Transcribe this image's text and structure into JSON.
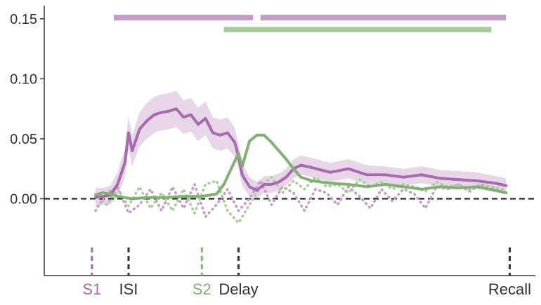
{
  "chart_data": {
    "type": "line",
    "title": "",
    "xlabel": "",
    "ylabel": "",
    "xlim": [
      -1.3,
      12.1
    ],
    "ylim": [
      -0.064,
      0.161
    ],
    "yticks": [
      0.0,
      0.05,
      0.1,
      0.15
    ],
    "ytick_labels": [
      "0.00",
      "0.05",
      "0.10",
      "0.15"
    ],
    "zero_line": {
      "y": 0,
      "style": "dashed",
      "color": "#111111"
    },
    "grid": false,
    "legend": "none",
    "events": [
      {
        "label": "S1",
        "x": 0.0,
        "color": "#a66aad"
      },
      {
        "label": "ISI",
        "x": 1.0,
        "color": "#333333"
      },
      {
        "label": "S2",
        "x": 3.0,
        "color": "#82b074"
      },
      {
        "label": "Delay",
        "x": 4.0,
        "color": "#333333"
      },
      {
        "label": "Recall",
        "x": 11.4,
        "color": "#333333"
      }
    ],
    "significance_bars": [
      {
        "color": "#c49ac8",
        "y": 0.151,
        "segments": [
          [
            0.6,
            4.4
          ],
          [
            4.6,
            11.3
          ]
        ]
      },
      {
        "color": "#a8cc9a",
        "y": 0.141,
        "segments": [
          [
            3.6,
            10.9
          ]
        ]
      }
    ],
    "series": [
      {
        "color": "#a66aad",
        "style": "solid",
        "x": [
          0.1,
          0.3,
          0.5,
          0.7,
          0.9,
          1.0,
          1.1,
          1.3,
          1.5,
          1.7,
          1.9,
          2.1,
          2.3,
          2.5,
          2.7,
          2.9,
          3.1,
          3.3,
          3.5,
          3.7,
          3.9,
          4.0,
          4.1,
          4.3,
          4.5,
          4.7,
          4.9,
          5.1,
          5.3,
          5.5,
          5.7,
          6.0,
          6.5,
          7.0,
          7.5,
          8.0,
          8.5,
          9.0,
          9.5,
          10.0,
          10.5,
          11.0,
          11.3
        ],
        "y": [
          0.001,
          0.002,
          0.003,
          0.012,
          0.03,
          0.055,
          0.04,
          0.058,
          0.065,
          0.07,
          0.072,
          0.073,
          0.075,
          0.068,
          0.07,
          0.062,
          0.067,
          0.055,
          0.053,
          0.055,
          0.047,
          0.035,
          0.02,
          0.01,
          0.007,
          0.012,
          0.012,
          0.014,
          0.018,
          0.025,
          0.028,
          0.026,
          0.022,
          0.025,
          0.02,
          0.02,
          0.018,
          0.02,
          0.017,
          0.016,
          0.015,
          0.013,
          0.011
        ],
        "band": [
          0.008,
          0.007,
          0.008,
          0.01,
          0.012,
          0.014,
          0.013,
          0.014,
          0.015,
          0.015,
          0.015,
          0.015,
          0.015,
          0.014,
          0.014,
          0.014,
          0.014,
          0.013,
          0.013,
          0.013,
          0.012,
          0.01,
          0.009,
          0.008,
          0.007,
          0.007,
          0.007,
          0.007,
          0.007,
          0.008,
          0.008,
          0.008,
          0.008,
          0.008,
          0.008,
          0.007,
          0.007,
          0.007,
          0.007,
          0.007,
          0.007,
          0.006,
          0.006
        ]
      },
      {
        "color": "#82b074",
        "style": "solid",
        "x": [
          0.1,
          0.3,
          0.5,
          0.7,
          0.9,
          1.1,
          1.5,
          2.0,
          2.5,
          3.0,
          3.2,
          3.4,
          3.6,
          3.8,
          4.0,
          4.1,
          4.3,
          4.5,
          4.7,
          4.9,
          5.1,
          5.3,
          5.5,
          5.7,
          6.0,
          6.5,
          7.0,
          7.5,
          8.0,
          8.5,
          9.0,
          9.5,
          10.0,
          10.5,
          11.0,
          11.3
        ],
        "y": [
          0.003,
          0.005,
          0.004,
          0.002,
          0.001,
          0.0,
          0.001,
          0.001,
          0.002,
          0.002,
          0.003,
          0.004,
          0.012,
          0.025,
          0.038,
          0.027,
          0.048,
          0.053,
          0.053,
          0.047,
          0.04,
          0.033,
          0.025,
          0.018,
          0.015,
          0.013,
          0.012,
          0.01,
          0.012,
          0.01,
          0.008,
          0.01,
          0.009,
          0.01,
          0.007,
          0.005
        ]
      },
      {
        "color": "#c49ac8",
        "style": "dotted",
        "x": [
          0.1,
          0.4,
          0.7,
          1.0,
          1.3,
          1.6,
          1.9,
          2.2,
          2.5,
          2.8,
          3.1,
          3.4,
          3.7,
          4.0,
          4.3,
          4.6,
          4.9,
          5.2,
          5.5,
          5.8,
          6.1,
          6.4,
          6.7,
          7.0,
          7.3,
          7.6,
          7.9,
          8.2,
          8.5,
          8.8,
          9.1,
          9.4,
          9.7,
          10.0,
          10.3,
          10.6,
          10.9,
          11.2
        ],
        "y": [
          -0.01,
          0.005,
          0.01,
          -0.012,
          -0.005,
          0.008,
          -0.01,
          0.01,
          -0.008,
          0.012,
          -0.015,
          -0.005,
          0.008,
          -0.01,
          0.0,
          0.015,
          -0.005,
          0.01,
          0.005,
          -0.01,
          0.008,
          0.005,
          -0.005,
          0.01,
          0.002,
          -0.008,
          0.008,
          -0.002,
          0.008,
          0.004,
          -0.008,
          0.01,
          0.008,
          0.012,
          0.006,
          0.012,
          0.008,
          0.006
        ]
      },
      {
        "color": "#a8cc9a",
        "style": "dotted",
        "x": [
          0.1,
          0.4,
          0.7,
          1.0,
          1.3,
          1.6,
          1.9,
          2.2,
          2.5,
          2.8,
          3.1,
          3.4,
          3.7,
          4.0,
          4.3,
          4.6,
          4.9,
          5.2,
          5.5,
          5.8,
          6.1,
          6.4,
          6.7,
          7.0,
          7.3,
          7.6,
          7.9,
          8.2,
          8.5,
          8.8,
          9.1,
          9.4,
          9.7,
          10.0,
          10.3,
          10.6,
          10.9,
          11.2
        ],
        "y": [
          0.004,
          -0.005,
          0.008,
          -0.006,
          0.01,
          -0.008,
          0.005,
          -0.01,
          0.008,
          -0.012,
          0.012,
          0.015,
          -0.01,
          -0.02,
          -0.005,
          0.01,
          0.018,
          0.005,
          0.015,
          0.008,
          0.018,
          0.01,
          0.012,
          0.005,
          0.016,
          0.01,
          0.014,
          0.008,
          0.012,
          0.01,
          0.006,
          0.014,
          0.01,
          0.012,
          0.008,
          0.012,
          0.01,
          0.008
        ]
      }
    ]
  }
}
